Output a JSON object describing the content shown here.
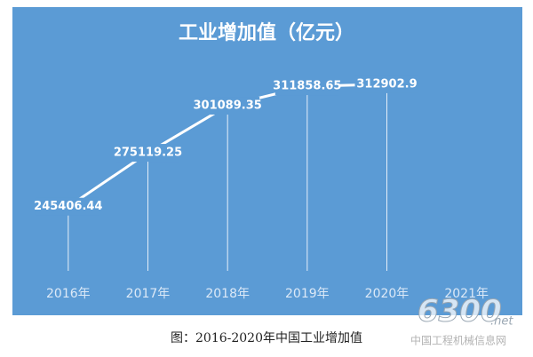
{
  "chart_data": {
    "type": "line",
    "title": "工业增加值（亿元）",
    "categories": [
      "2016年",
      "2017年",
      "2018年",
      "2019年",
      "2020年",
      "2021年"
    ],
    "values": [
      245406.44,
      275119.25,
      301089.35,
      311858.65,
      312902.9,
      null
    ],
    "color": "#ffffff",
    "background": "#5b9bd5",
    "drop_lines": true,
    "ylim": [
      210000,
      330000
    ],
    "caption": "图：2016-2020年中国工业增加值",
    "watermark": {
      "number": "6300",
      "suffix": ".net",
      "site": "中国工程机械信息网"
    }
  }
}
